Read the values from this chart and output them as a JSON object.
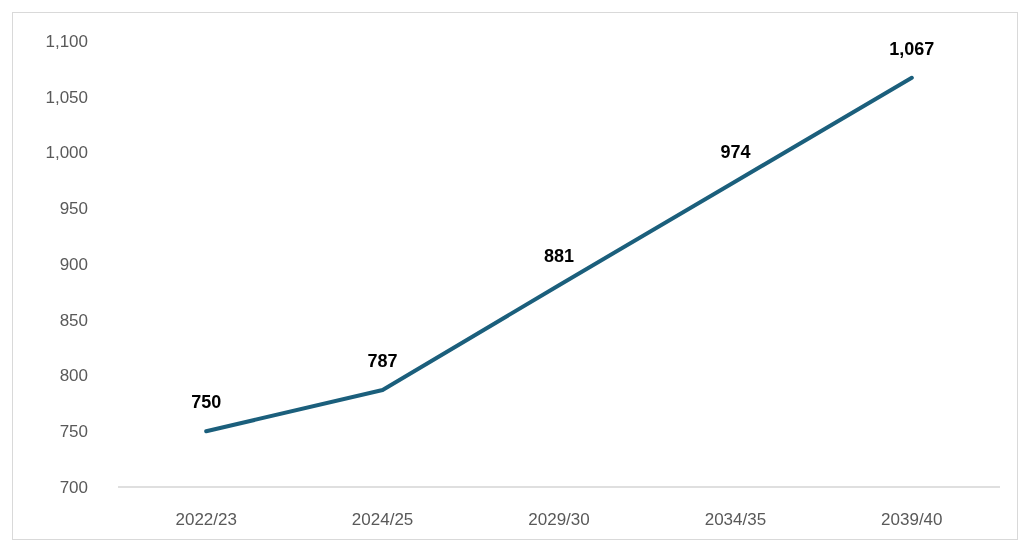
{
  "chart_data": {
    "type": "line",
    "categories": [
      "2022/23",
      "2024/25",
      "2029/30",
      "2034/35",
      "2039/40"
    ],
    "series": [
      {
        "color": "#1b5f7c",
        "values": [
          750,
          787,
          881,
          974,
          1067
        ],
        "value_labels": [
          "750",
          "787",
          "881",
          "974",
          "1,067"
        ]
      }
    ],
    "ylim": [
      700,
      1100
    ],
    "yticks": [
      700,
      750,
      800,
      850,
      900,
      950,
      {
        "value": 1000,
        "label": "1,000"
      },
      {
        "value": 1050,
        "label": "1,050"
      },
      {
        "value": 1100,
        "label": "1,100"
      }
    ],
    "grid": false,
    "marker": "none",
    "line_style": "solid"
  }
}
